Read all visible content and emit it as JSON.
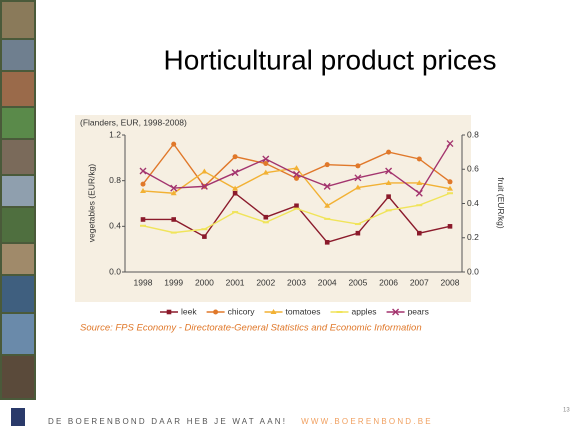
{
  "chart_data": {
    "type": "line",
    "title": "Horticultural product prices",
    "subtitle": "(Flanders, EUR, 1998-2008)",
    "ylabel": "vegetables (EUR/kg)",
    "y2label": "fruit (EUR/kg)",
    "source": "Source: FPS Economy - Directorate-General Statistics and Economic Information",
    "categories": [
      "1998",
      "1999",
      "2000",
      "2001",
      "2002",
      "2003",
      "2004",
      "2005",
      "2006",
      "2007",
      "2008"
    ],
    "ylim": [
      0,
      1.2
    ],
    "yticks": [
      {
        "value": 0,
        "label": "0.0"
      },
      0.4,
      0.8,
      1.2
    ],
    "y2lim": [
      0,
      0.8
    ],
    "y2ticks": [
      {
        "value": 0,
        "label": "0.0"
      },
      0.2,
      0.4,
      0.6,
      0.8
    ],
    "series": [
      {
        "name": "leek",
        "color": "#8b1a2b",
        "marker": "square",
        "values": [
          0.46,
          0.46,
          0.31,
          0.69,
          0.48,
          0.58,
          0.26,
          0.34,
          0.66,
          0.34,
          0.4
        ]
      },
      {
        "name": "chicory",
        "color": "#e0782a",
        "marker": "circle",
        "values": [
          0.77,
          1.12,
          0.75,
          1.01,
          0.95,
          0.82,
          0.94,
          0.93,
          1.05,
          0.99,
          0.79
        ]
      },
      {
        "name": "tomatoes",
        "color": "#f2b134",
        "marker": "triangle",
        "values": [
          0.71,
          0.69,
          0.88,
          0.73,
          0.87,
          0.91,
          0.58,
          0.74,
          0.78,
          0.78,
          0.73
        ]
      },
      {
        "name": "apples",
        "color": "#f0e45a",
        "marker": "dash",
        "axis": "y2",
        "values": [
          0.27,
          0.23,
          0.25,
          0.35,
          0.29,
          0.37,
          0.31,
          0.28,
          0.36,
          0.39,
          0.46
        ]
      },
      {
        "name": "pears",
        "color": "#a3346e",
        "marker": "cross",
        "axis": "y2",
        "values": [
          0.59,
          0.49,
          0.5,
          0.58,
          0.66,
          0.57,
          0.5,
          0.55,
          0.59,
          0.46,
          0.75
        ]
      }
    ]
  },
  "footer": {
    "slogan": "DE BOERENBOND DAAR HEB JE WAT AAN!",
    "url": "WWW.BOERENBOND.BE",
    "page_number": "13"
  }
}
